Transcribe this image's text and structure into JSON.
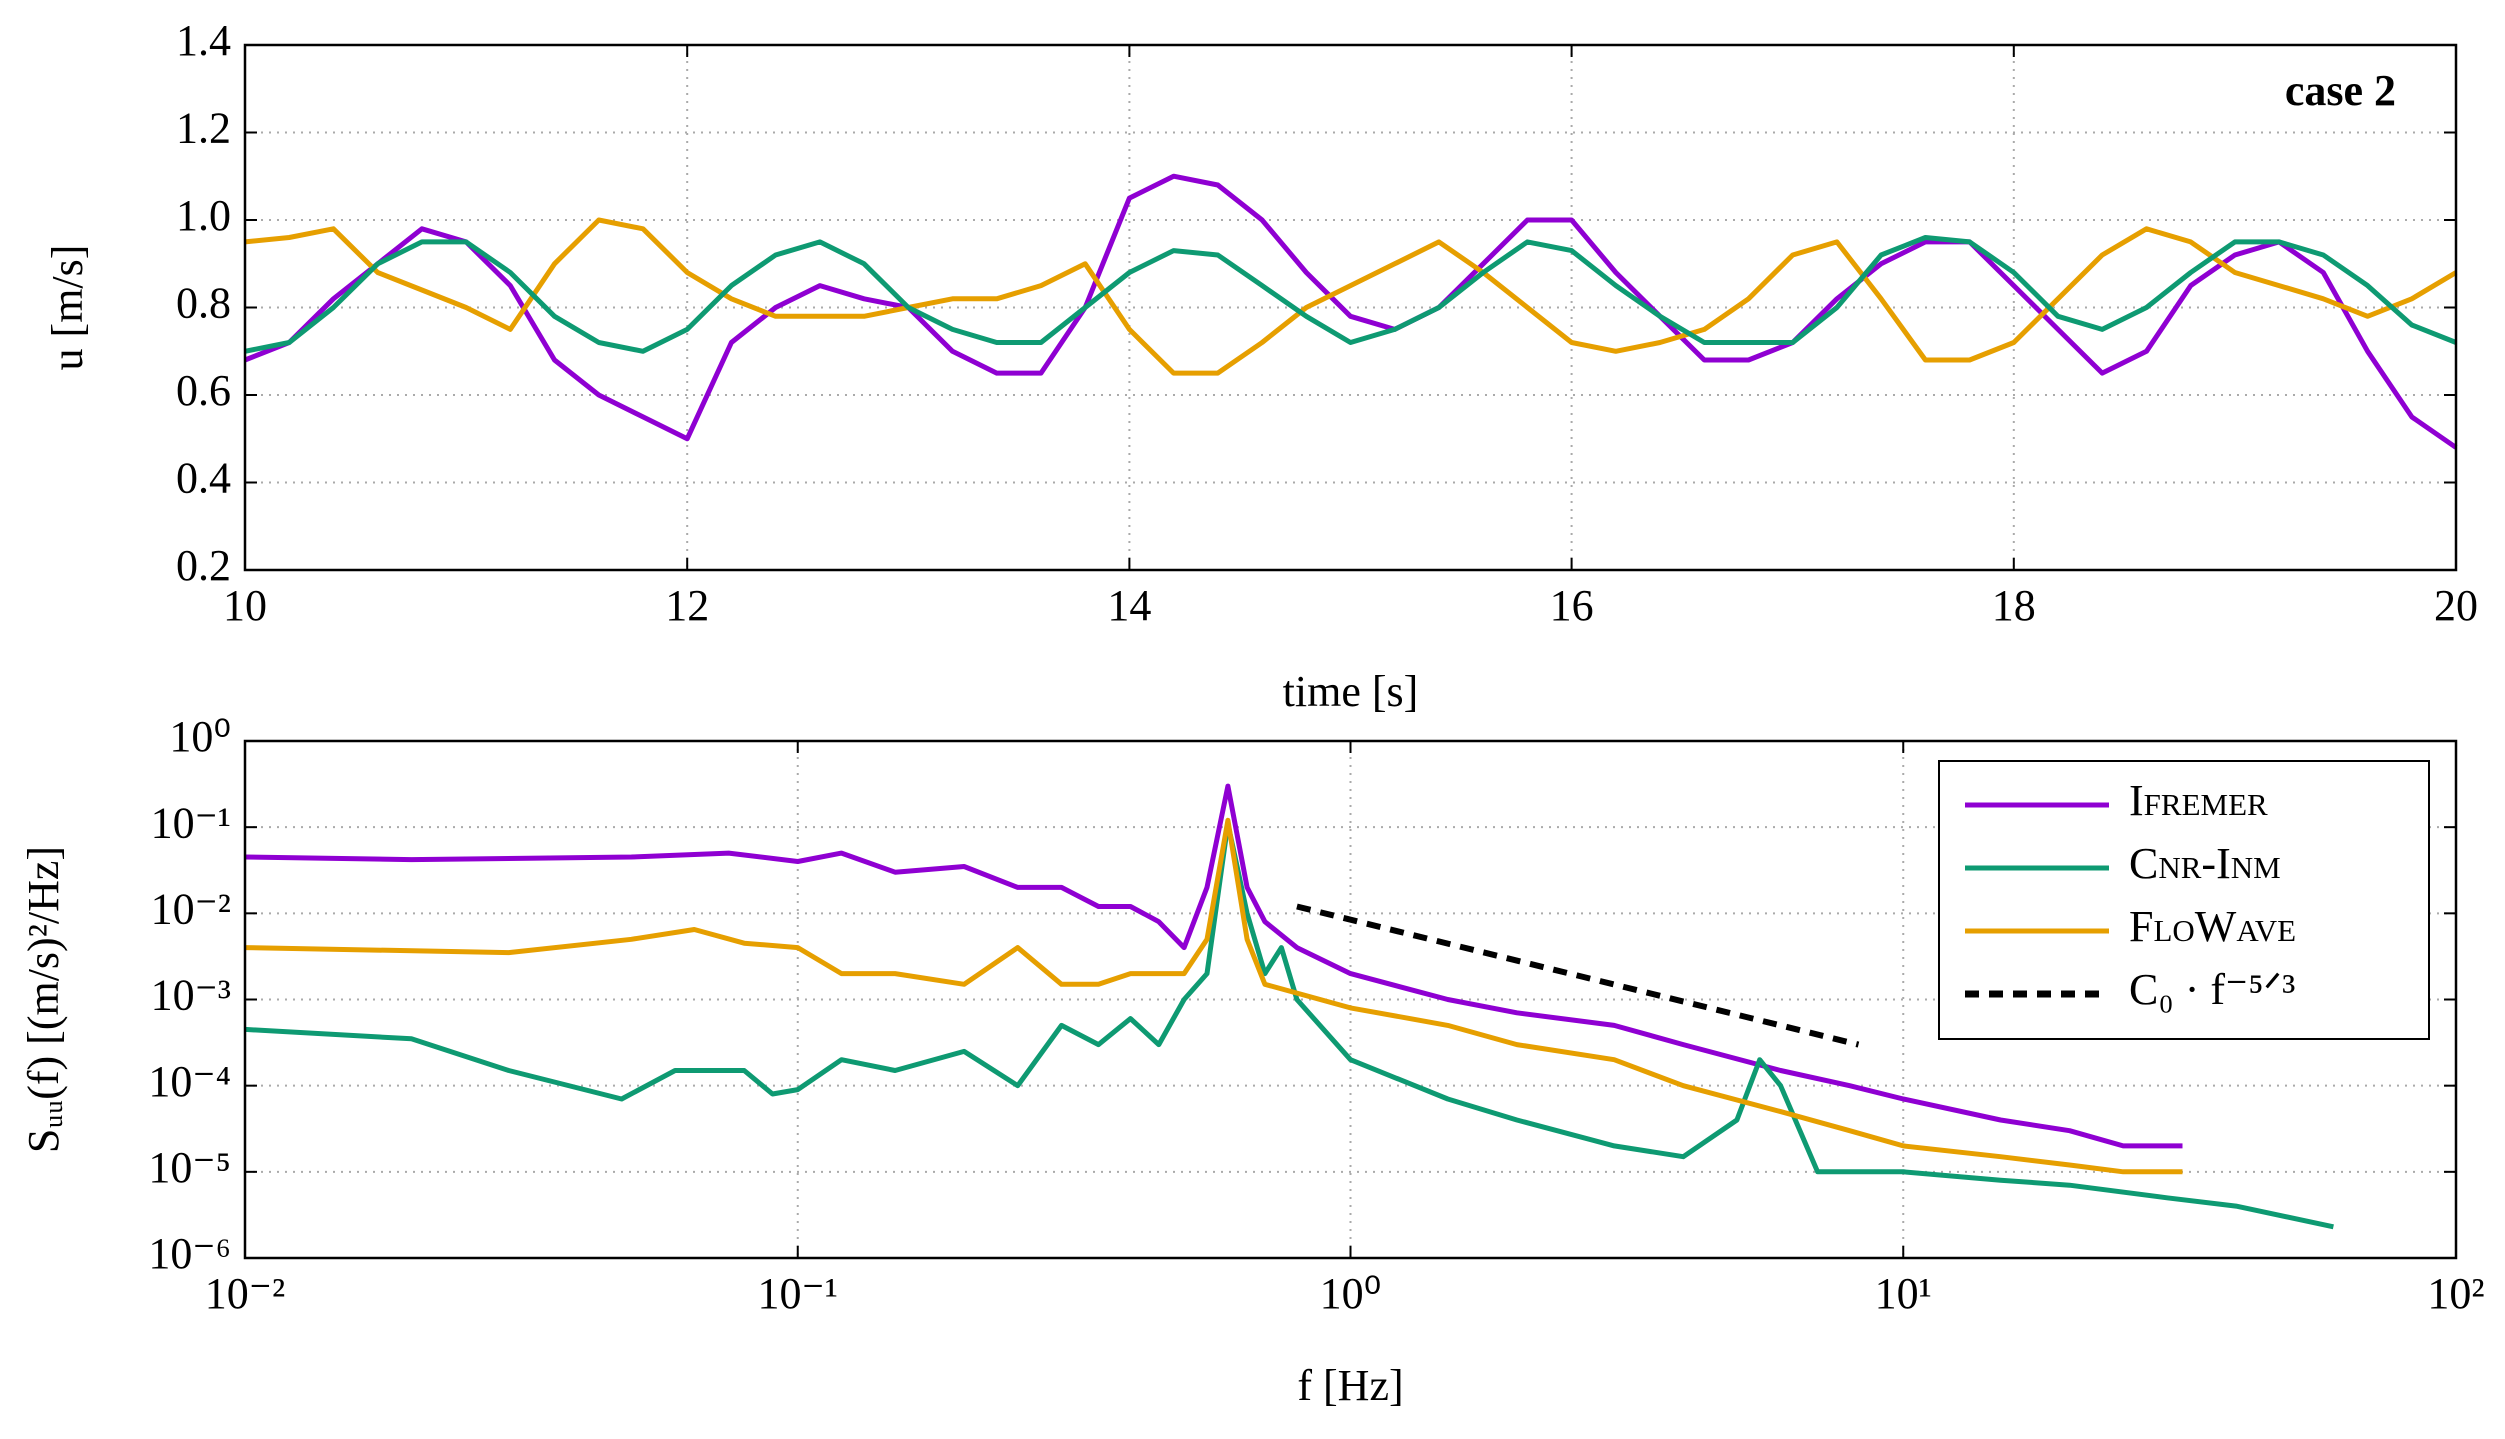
{
  "chart_data": [
    {
      "type": "line",
      "xlabel": "time [s]",
      "ylabel": "u [m/s]",
      "annotation": "case 2",
      "xlim": [
        10,
        20
      ],
      "ylim": [
        0.2,
        1.4
      ],
      "xticks": [
        10,
        12,
        14,
        16,
        18,
        20
      ],
      "yticks": [
        0.2,
        0.4,
        0.6,
        0.8,
        {
          "value": 1,
          "label": "1.0"
        },
        1.2,
        1.4
      ],
      "grid": true,
      "x": [
        10,
        10.2,
        10.4,
        10.6,
        10.8,
        11,
        11.2,
        11.4,
        11.6,
        11.8,
        12,
        12.2,
        12.4,
        12.6,
        12.8,
        13,
        13.2,
        13.4,
        13.6,
        13.8,
        14,
        14.2,
        14.4,
        14.6,
        14.8,
        15,
        15.2,
        15.4,
        15.6,
        15.8,
        16,
        16.2,
        16.4,
        16.6,
        16.8,
        17,
        17.2,
        17.4,
        17.6,
        17.8,
        18,
        18.2,
        18.4,
        18.6,
        18.8,
        19,
        19.2,
        19.4,
        19.6,
        19.8,
        20
      ],
      "series": [
        {
          "color": "#8f00d2",
          "values": [
            0.68,
            0.72,
            0.82,
            0.9,
            0.98,
            0.95,
            0.85,
            0.68,
            0.6,
            0.55,
            0.5,
            0.72,
            0.8,
            0.85,
            0.82,
            0.8,
            0.7,
            0.65,
            0.65,
            0.8,
            1.05,
            1.1,
            1.08,
            1.0,
            0.88,
            0.78,
            0.75,
            0.8,
            0.9,
            1.0,
            1.0,
            0.88,
            0.78,
            0.68,
            0.68,
            0.72,
            0.82,
            0.9,
            0.95,
            0.95,
            0.85,
            0.75,
            0.65,
            0.7,
            0.85,
            0.92,
            0.95,
            0.88,
            0.7,
            0.55,
            0.48
          ]
        },
        {
          "color": "#e69f00",
          "values": [
            0.95,
            0.96,
            0.98,
            0.88,
            0.84,
            0.8,
            0.75,
            0.9,
            1.0,
            0.98,
            0.88,
            0.82,
            0.78,
            0.78,
            0.78,
            0.8,
            0.82,
            0.82,
            0.85,
            0.9,
            0.75,
            0.65,
            0.65,
            0.72,
            0.8,
            0.85,
            0.9,
            0.95,
            0.88,
            0.8,
            0.72,
            0.7,
            0.72,
            0.75,
            0.82,
            0.92,
            0.95,
            0.82,
            0.68,
            0.68,
            0.72,
            0.82,
            0.92,
            0.98,
            0.95,
            0.88,
            0.85,
            0.82,
            0.78,
            0.82,
            0.88
          ]
        },
        {
          "color": "#0e9a72",
          "values": [
            0.7,
            0.72,
            0.8,
            0.9,
            0.95,
            0.95,
            0.88,
            0.78,
            0.72,
            0.7,
            0.75,
            0.85,
            0.92,
            0.95,
            0.9,
            0.8,
            0.75,
            0.72,
            0.72,
            0.8,
            0.88,
            0.93,
            0.92,
            0.85,
            0.78,
            0.72,
            0.75,
            0.8,
            0.88,
            0.95,
            0.93,
            0.85,
            0.78,
            0.72,
            0.72,
            0.72,
            0.8,
            0.92,
            0.96,
            0.95,
            0.88,
            0.78,
            0.75,
            0.8,
            0.88,
            0.95,
            0.95,
            0.92,
            0.85,
            0.76,
            0.72
          ]
        }
      ]
    },
    {
      "type": "line",
      "xscale": "log",
      "yscale": "log",
      "xlabel": "f [Hz]",
      "ylabel": "Sᵤᵤ(f) [(m/s)²/Hz]",
      "xlim": [
        0.01,
        100
      ],
      "ylim": [
        1e-06,
        1
      ],
      "xticks": [
        {
          "value": 0.01,
          "label": "10⁻²"
        },
        {
          "value": 0.1,
          "label": "10⁻¹"
        },
        {
          "value": 1,
          "label": "10⁰"
        },
        {
          "value": 10,
          "label": "10¹"
        },
        {
          "value": 100,
          "label": "10²"
        }
      ],
      "yticks": [
        {
          "value": 1e-06,
          "label": "10⁻⁶"
        },
        {
          "value": 1e-05,
          "label": "10⁻⁵"
        },
        {
          "value": 0.0001,
          "label": "10⁻⁴"
        },
        {
          "value": 0.001,
          "label": "10⁻³"
        },
        {
          "value": 0.01,
          "label": "10⁻²"
        },
        {
          "value": 0.1,
          "label": "10⁻¹"
        },
        {
          "value": 1,
          "label": "10⁰"
        }
      ],
      "grid": true,
      "legend": "upper right",
      "series": [
        {
          "name": "Ifremer",
          "color": "#8f00d2",
          "x": [
            0.01,
            0.02,
            0.05,
            0.075,
            0.1,
            0.12,
            0.15,
            0.2,
            0.25,
            0.3,
            0.35,
            0.4,
            0.45,
            0.5,
            0.55,
            0.6,
            0.65,
            0.7,
            0.8,
            1,
            1.5,
            2,
            3,
            4,
            6,
            8,
            10,
            15,
            20,
            25,
            32
          ],
          "values": [
            0.045,
            0.042,
            0.045,
            0.05,
            0.04,
            0.05,
            0.03,
            0.035,
            0.02,
            0.02,
            0.012,
            0.012,
            0.008,
            0.004,
            0.02,
            0.3,
            0.02,
            0.008,
            0.004,
            0.002,
            0.001,
            0.0007,
            0.0005,
            0.0003,
            0.00015,
            0.0001,
            7e-05,
            4e-05,
            3e-05,
            2e-05,
            2e-05
          ]
        },
        {
          "name": "Cnr-Inm",
          "color": "#0e9a72",
          "x": [
            0.01,
            0.02,
            0.03,
            0.048,
            0.06,
            0.08,
            0.09,
            0.1,
            0.12,
            0.15,
            0.2,
            0.25,
            0.3,
            0.35,
            0.4,
            0.45,
            0.5,
            0.55,
            0.6,
            0.65,
            0.7,
            0.75,
            0.8,
            1,
            1.5,
            2,
            3,
            4,
            5,
            5.5,
            6,
            7,
            10,
            15,
            20,
            30,
            40,
            60
          ],
          "values": [
            0.00045,
            0.00035,
            0.00015,
            7e-05,
            0.00015,
            0.00015,
            8e-05,
            9e-05,
            0.0002,
            0.00015,
            0.00025,
            0.0001,
            0.0005,
            0.0003,
            0.0006,
            0.0003,
            0.001,
            0.002,
            0.11,
            0.01,
            0.002,
            0.004,
            0.001,
            0.0002,
            7e-05,
            4e-05,
            2e-05,
            1.5e-05,
            4e-05,
            0.0002,
            0.0001,
            1e-05,
            1e-05,
            8e-06,
            7e-06,
            5e-06,
            4e-06,
            2.3e-06
          ]
        },
        {
          "name": "FloWave",
          "color": "#e69f00",
          "x": [
            0.01,
            0.03,
            0.05,
            0.065,
            0.08,
            0.1,
            0.12,
            0.15,
            0.2,
            0.25,
            0.3,
            0.35,
            0.4,
            0.5,
            0.55,
            0.6,
            0.65,
            0.7,
            1,
            1.5,
            2,
            3,
            4,
            6,
            8,
            10,
            15,
            20,
            25,
            32
          ],
          "values": [
            0.004,
            0.0035,
            0.005,
            0.0065,
            0.0045,
            0.004,
            0.002,
            0.002,
            0.0015,
            0.004,
            0.0015,
            0.0015,
            0.002,
            0.002,
            0.005,
            0.12,
            0.005,
            0.0015,
            0.0008,
            0.0005,
            0.0003,
            0.0002,
            0.0001,
            5e-05,
            3e-05,
            2e-05,
            1.5e-05,
            1.2e-05,
            1e-05,
            1e-05
          ]
        },
        {
          "name": "C₀ · f⁻⁵ᐟ³",
          "color": "#000000",
          "dash": true,
          "x": [
            0.8,
            8.3
          ],
          "values": [
            0.012,
            0.0003
          ]
        }
      ]
    }
  ]
}
